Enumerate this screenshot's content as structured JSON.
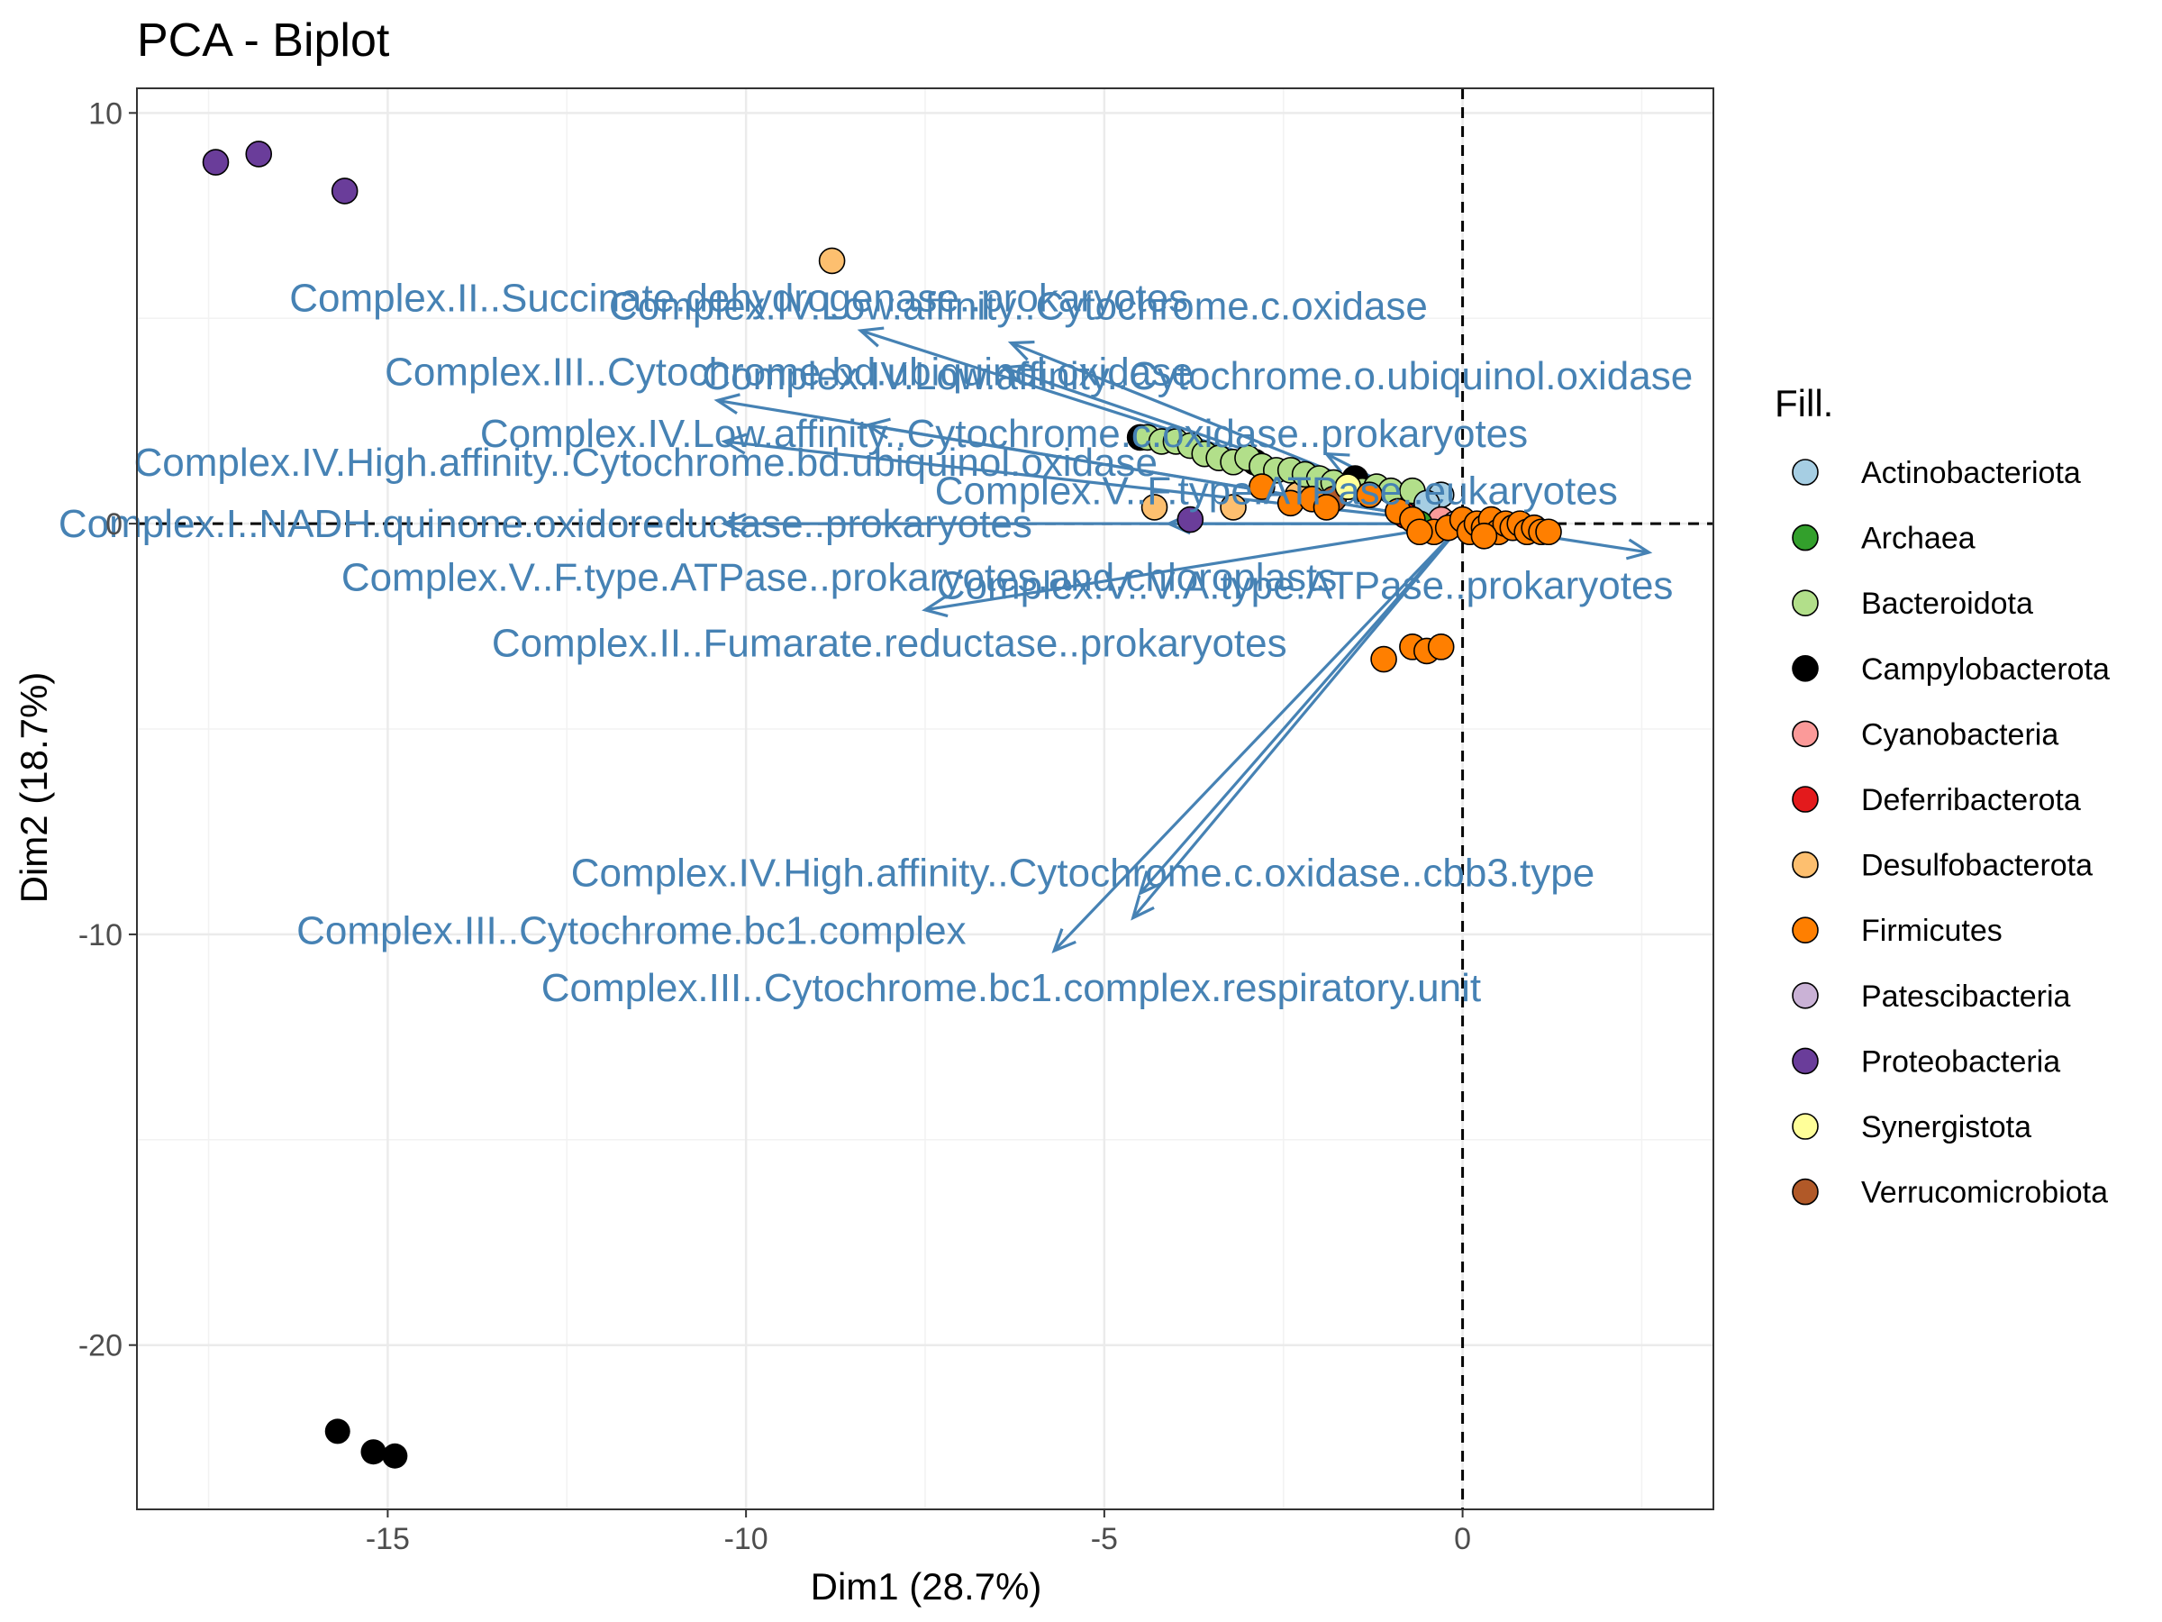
{
  "chart_data": {
    "type": "scatter",
    "title": "PCA - Biplot",
    "xlabel": "Dim1 (28.7%)",
    "ylabel": "Dim2 (18.7%)",
    "xlim": [
      -18.5,
      3.5
    ],
    "ylim": [
      -24,
      10.6
    ],
    "xticks": [
      -15,
      -10,
      -5,
      0
    ],
    "yticks": [
      10,
      0,
      -10,
      -20
    ],
    "grid": true,
    "reference_lines": {
      "x": 0,
      "y": 0
    },
    "legend": {
      "title": "Fill.",
      "placement": "right",
      "entries": [
        {
          "name": "Actinobacteriota",
          "color": "#a6cee3"
        },
        {
          "name": "Archaea",
          "color": "#33a02c"
        },
        {
          "name": "Bacteroidota",
          "color": "#b2df8a"
        },
        {
          "name": "Campylobacterota",
          "color": "#000000"
        },
        {
          "name": "Cyanobacteria",
          "color": "#fb9a99"
        },
        {
          "name": "Deferribacterota",
          "color": "#e31a1c"
        },
        {
          "name": "Desulfobacterota",
          "color": "#fdbf6f"
        },
        {
          "name": "Firmicutes",
          "color": "#ff7f00"
        },
        {
          "name": "Patescibacteria",
          "color": "#cab2d6"
        },
        {
          "name": "Proteobacteria",
          "color": "#6a3d9a"
        },
        {
          "name": "Synergistota",
          "color": "#ffff99"
        },
        {
          "name": "Verrucomicrobiota",
          "color": "#b15928"
        }
      ]
    },
    "points": [
      {
        "x": -17.4,
        "y": 8.8,
        "group": "Proteobacteria"
      },
      {
        "x": -16.8,
        "y": 9.0,
        "group": "Proteobacteria"
      },
      {
        "x": -15.6,
        "y": 8.1,
        "group": "Proteobacteria"
      },
      {
        "x": -3.8,
        "y": 0.1,
        "group": "Proteobacteria"
      },
      {
        "x": -15.7,
        "y": -22.1,
        "group": "Campylobacterota"
      },
      {
        "x": -15.2,
        "y": -22.6,
        "group": "Campylobacterota"
      },
      {
        "x": -14.9,
        "y": -22.7,
        "group": "Campylobacterota"
      },
      {
        "x": -4.5,
        "y": 2.1,
        "group": "Campylobacterota"
      },
      {
        "x": -2.9,
        "y": 1.5,
        "group": "Campylobacterota"
      },
      {
        "x": -1.5,
        "y": 1.1,
        "group": "Campylobacterota"
      },
      {
        "x": -8.8,
        "y": 6.4,
        "group": "Desulfobacterota"
      },
      {
        "x": -4.3,
        "y": 0.4,
        "group": "Desulfobacterota"
      },
      {
        "x": -3.2,
        "y": 0.4,
        "group": "Desulfobacterota"
      },
      {
        "x": -2.3,
        "y": 0.7,
        "group": "Desulfobacterota"
      },
      {
        "x": -4.4,
        "y": 2.1,
        "group": "Bacteroidota"
      },
      {
        "x": -4.2,
        "y": 2.0,
        "group": "Bacteroidota"
      },
      {
        "x": -4.0,
        "y": 2.0,
        "group": "Bacteroidota"
      },
      {
        "x": -3.8,
        "y": 1.9,
        "group": "Bacteroidota"
      },
      {
        "x": -3.6,
        "y": 1.7,
        "group": "Bacteroidota"
      },
      {
        "x": -3.4,
        "y": 1.6,
        "group": "Bacteroidota"
      },
      {
        "x": -3.2,
        "y": 1.5,
        "group": "Bacteroidota"
      },
      {
        "x": -3.0,
        "y": 1.6,
        "group": "Bacteroidota"
      },
      {
        "x": -2.8,
        "y": 1.4,
        "group": "Bacteroidota"
      },
      {
        "x": -2.6,
        "y": 1.3,
        "group": "Bacteroidota"
      },
      {
        "x": -2.4,
        "y": 1.3,
        "group": "Bacteroidota"
      },
      {
        "x": -2.2,
        "y": 1.2,
        "group": "Bacteroidota"
      },
      {
        "x": -2.0,
        "y": 1.1,
        "group": "Bacteroidota"
      },
      {
        "x": -1.8,
        "y": 1.0,
        "group": "Bacteroidota"
      },
      {
        "x": -1.6,
        "y": 0.9,
        "group": "Bacteroidota"
      },
      {
        "x": -1.4,
        "y": 0.8,
        "group": "Bacteroidota"
      },
      {
        "x": -1.2,
        "y": 0.9,
        "group": "Bacteroidota"
      },
      {
        "x": -1.0,
        "y": 0.8,
        "group": "Bacteroidota"
      },
      {
        "x": -0.7,
        "y": 0.8,
        "group": "Bacteroidota"
      },
      {
        "x": -0.3,
        "y": 0.7,
        "group": "Actinobacteriota"
      },
      {
        "x": -0.5,
        "y": 0.5,
        "group": "Actinobacteriota"
      },
      {
        "x": -1.8,
        "y": 0.6,
        "group": "Verrucomicrobiota"
      },
      {
        "x": -1.6,
        "y": 0.9,
        "group": "Synergistota"
      },
      {
        "x": -0.8,
        "y": 0.2,
        "group": "Deferribacterota"
      },
      {
        "x": -0.3,
        "y": 0.1,
        "group": "Cyanobacteria"
      },
      {
        "x": -0.1,
        "y": 0.0,
        "group": "Patescibacteria"
      },
      {
        "x": -0.6,
        "y": 0.0,
        "group": "Archaea"
      },
      {
        "x": -2.8,
        "y": 0.9,
        "group": "Firmicutes"
      },
      {
        "x": -2.4,
        "y": 0.5,
        "group": "Firmicutes"
      },
      {
        "x": -2.1,
        "y": 0.6,
        "group": "Firmicutes"
      },
      {
        "x": -1.9,
        "y": 0.4,
        "group": "Firmicutes"
      },
      {
        "x": -1.1,
        "y": -3.3,
        "group": "Firmicutes"
      },
      {
        "x": -0.7,
        "y": -3.0,
        "group": "Firmicutes"
      },
      {
        "x": -0.5,
        "y": -3.1,
        "group": "Firmicutes"
      },
      {
        "x": -0.3,
        "y": -3.0,
        "group": "Firmicutes"
      },
      {
        "x": -0.9,
        "y": 0.3,
        "group": "Firmicutes"
      },
      {
        "x": -0.7,
        "y": 0.1,
        "group": "Firmicutes"
      },
      {
        "x": -0.4,
        "y": -0.2,
        "group": "Firmicutes"
      },
      {
        "x": -0.2,
        "y": -0.1,
        "group": "Firmicutes"
      },
      {
        "x": 0.0,
        "y": 0.1,
        "group": "Firmicutes"
      },
      {
        "x": 0.1,
        "y": -0.2,
        "group": "Firmicutes"
      },
      {
        "x": 0.2,
        "y": 0.0,
        "group": "Firmicutes"
      },
      {
        "x": 0.3,
        "y": -0.1,
        "group": "Firmicutes"
      },
      {
        "x": 0.4,
        "y": 0.1,
        "group": "Firmicutes"
      },
      {
        "x": 0.5,
        "y": -0.2,
        "group": "Firmicutes"
      },
      {
        "x": 0.6,
        "y": 0.0,
        "group": "Firmicutes"
      },
      {
        "x": 0.7,
        "y": -0.1,
        "group": "Firmicutes"
      },
      {
        "x": 0.8,
        "y": 0.0,
        "group": "Firmicutes"
      },
      {
        "x": 0.9,
        "y": -0.2,
        "group": "Firmicutes"
      },
      {
        "x": 1.0,
        "y": -0.1,
        "group": "Firmicutes"
      },
      {
        "x": 1.1,
        "y": -0.2,
        "group": "Firmicutes"
      },
      {
        "x": 1.2,
        "y": -0.2,
        "group": "Firmicutes"
      },
      {
        "x": -0.6,
        "y": -0.2,
        "group": "Firmicutes"
      },
      {
        "x": 0.3,
        "y": -0.3,
        "group": "Firmicutes"
      },
      {
        "x": -1.3,
        "y": 0.7,
        "group": "Firmicutes"
      }
    ],
    "arrows": [
      {
        "name": "Complex.II..Succinate.dehydrogenase..prokaryotes",
        "x": -8.4,
        "y": 4.7,
        "label_x": -10.1,
        "label_y": 5.5,
        "label_anchor": "middle"
      },
      {
        "name": "Complex.IV.Low.affinity..Cytochrome.c.oxidase",
        "x": -6.3,
        "y": 4.4,
        "label_x": -6.2,
        "label_y": 5.3,
        "label_anchor": "middle"
      },
      {
        "name": "Complex.III..Cytochrome.bd.ubiquinol.oxidase",
        "x": -10.4,
        "y": 3.0,
        "label_x": -9.4,
        "label_y": 3.7,
        "label_anchor": "middle"
      },
      {
        "name": "Complex.IV.Low.affinity..Cytochrome.o.ubiquinol.oxidase",
        "x": -6.4,
        "y": 3.8,
        "label_x": -3.7,
        "label_y": 3.6,
        "label_anchor": "middle"
      },
      {
        "name": "Complex.IV.Low.affinity..Cytochrome.c.oxidase..prokaryotes",
        "x": -8.3,
        "y": 2.4,
        "label_x": -6.4,
        "label_y": 2.2,
        "label_anchor": "middle"
      },
      {
        "name": "Complex.IV.High.affinity..Cytochrome.bd.ubiquinol.oxidase",
        "x": -10.3,
        "y": 2.0,
        "label_x": -11.4,
        "label_y": 1.5,
        "label_anchor": "middle"
      },
      {
        "name": "Complex.V..F.type.ATPase..eukaryotes",
        "x": -1.9,
        "y": 1.7,
        "label_x": -2.6,
        "label_y": 0.8,
        "label_anchor": "middle"
      },
      {
        "name": "Complex.I..NADH.quinone.oxidoreductase..prokaryotes",
        "x": -4.1,
        "y": 0.0,
        "label_x": -12.8,
        "label_y": 0.0,
        "label_anchor": "middle"
      },
      {
        "name": "Complex.V..F.type.ATPase..prokaryotes.and.chloroplasts",
        "x": -7.5,
        "y": -2.1,
        "label_x": -8.7,
        "label_y": -1.3,
        "label_anchor": "middle"
      },
      {
        "name": "Complex.V..V.A.type.ATPase..prokaryotes",
        "x": 2.6,
        "y": -0.7,
        "label_x": -2.2,
        "label_y": -1.5,
        "label_anchor": "middle"
      },
      {
        "name": "Complex.II..Fumarate.reductase..prokaryotes",
        "x": -10.3,
        "y": 0.0,
        "label_x": -8.0,
        "label_y": -2.9,
        "label_anchor": "middle"
      },
      {
        "name": "Complex.IV.High.affinity..Cytochrome.c.oxidase..cbb3.type",
        "x": -4.6,
        "y": -9.6,
        "label_x": -5.3,
        "label_y": -8.5,
        "label_anchor": "middle"
      },
      {
        "name": "Complex.III..Cytochrome.bc1.complex",
        "x": -5.7,
        "y": -10.4,
        "label_x": -11.6,
        "label_y": -9.9,
        "label_anchor": "middle"
      },
      {
        "name": "Complex.III..Cytochrome.bc1.complex.respiratory.unit",
        "x": -4.5,
        "y": -9.0,
        "label_x": -6.3,
        "label_y": -11.3,
        "label_anchor": "middle"
      }
    ],
    "arrow_color": "#4682b4"
  }
}
